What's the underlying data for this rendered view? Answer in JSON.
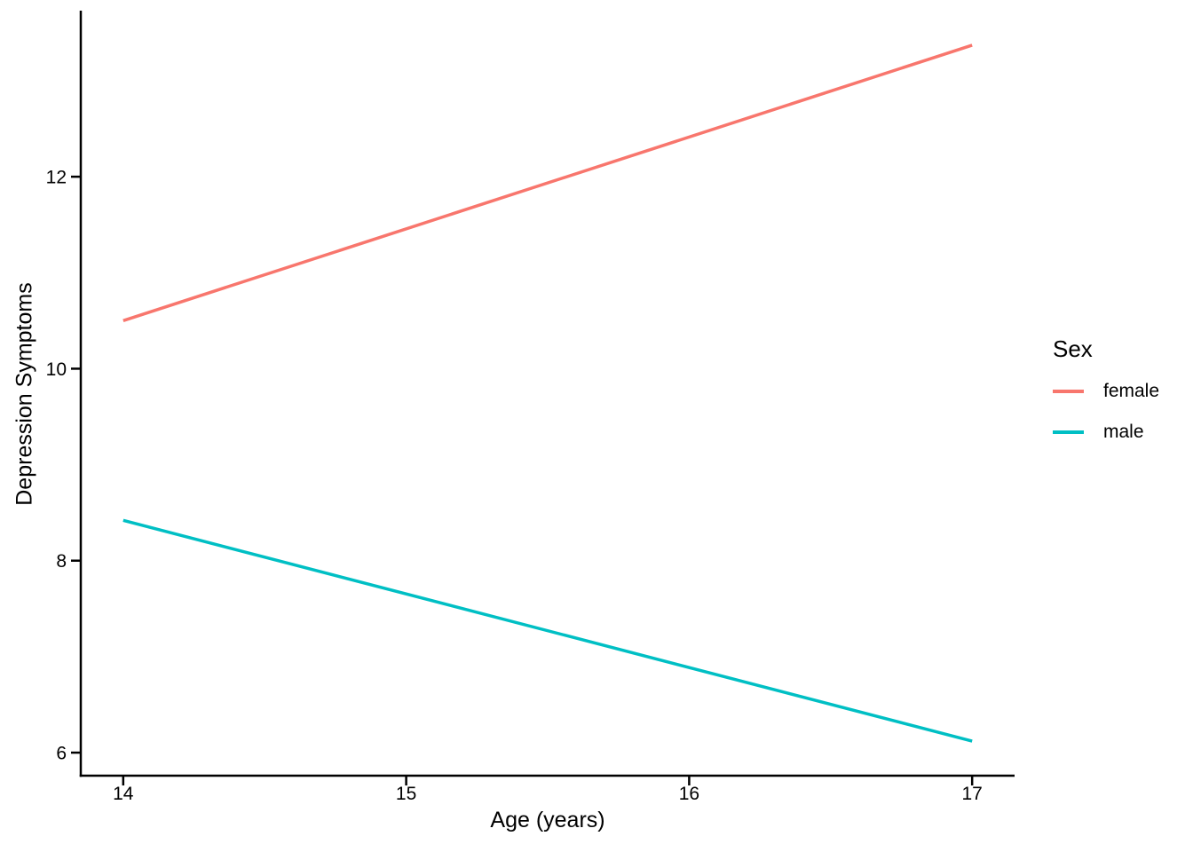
{
  "chart_data": {
    "type": "line",
    "title": "",
    "xlabel": "Age (years)",
    "ylabel": "Depression Symptoms",
    "x": [
      14,
      17
    ],
    "series": [
      {
        "name": "female",
        "color": "#F8766D",
        "values": [
          10.5,
          13.37
        ]
      },
      {
        "name": "male",
        "color": "#00BFC4",
        "values": [
          8.42,
          6.12
        ]
      }
    ],
    "x_ticks": [
      14,
      15,
      16,
      17
    ],
    "y_ticks": [
      6,
      8,
      10,
      12
    ],
    "xlim": [
      13.85,
      17.15
    ],
    "ylim": [
      5.76,
      13.73
    ],
    "grid": false,
    "axis_color": "#000000",
    "text_color": "#000000",
    "legend": {
      "title": "Sex",
      "position": "right"
    }
  }
}
